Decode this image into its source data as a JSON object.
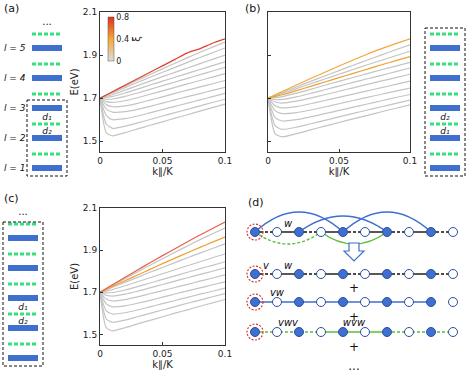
{
  "chart_data": [
    {
      "type": "line",
      "x_label": "k∥/K",
      "y_label": "E(eV)",
      "x": [
        0,
        0.005,
        0.01,
        0.02,
        0.03,
        0.04,
        0.05,
        0.06,
        0.07,
        0.08,
        0.09,
        0.1
      ],
      "xlim": [
        0,
        0.1
      ],
      "ylim": [
        1.45,
        2.1
      ],
      "xticks": [
        0,
        0.05,
        0.1
      ],
      "yticks": [
        1.5,
        1.7,
        1.9,
        2.1
      ],
      "colorbar": {
        "title": "ξ",
        "range": [
          0,
          0.8
        ],
        "ticks": [
          0,
          0.4,
          0.8
        ]
      },
      "series": [
        {
          "color": "#c4c4c4",
          "values": [
            1.7,
            1.714,
            1.728,
            1.756,
            1.783,
            1.81,
            1.836,
            1.862,
            1.888,
            1.913,
            1.937,
            1.96
          ]
        },
        {
          "color": "#c4c4c4",
          "values": [
            1.7,
            1.712,
            1.724,
            1.749,
            1.773,
            1.797,
            1.82,
            1.843,
            1.866,
            1.889,
            1.911,
            1.933
          ]
        },
        {
          "color": "#c4c4c4",
          "values": [
            1.7,
            1.708,
            1.717,
            1.737,
            1.758,
            1.779,
            1.8,
            1.82,
            1.84,
            1.86,
            1.88,
            1.9
          ]
        },
        {
          "color": "#c4c4c4",
          "values": [
            1.7,
            1.703,
            1.708,
            1.724,
            1.742,
            1.761,
            1.779,
            1.797,
            1.815,
            1.833,
            1.851,
            1.869
          ]
        },
        {
          "color": "#c4c4c4",
          "values": [
            1.7,
            1.695,
            1.696,
            1.708,
            1.724,
            1.741,
            1.758,
            1.775,
            1.792,
            1.809,
            1.826,
            1.843
          ]
        },
        {
          "color": "#c4c4c4",
          "values": [
            1.7,
            1.684,
            1.68,
            1.688,
            1.702,
            1.718,
            1.734,
            1.75,
            1.766,
            1.782,
            1.798,
            1.814
          ]
        },
        {
          "color": "#c4c4c4",
          "values": [
            1.7,
            1.67,
            1.66,
            1.664,
            1.676,
            1.691,
            1.706,
            1.722,
            1.737,
            1.752,
            1.767,
            1.782
          ]
        },
        {
          "color": "#c4c4c4",
          "values": [
            1.7,
            1.65,
            1.635,
            1.637,
            1.648,
            1.662,
            1.677,
            1.692,
            1.707,
            1.721,
            1.736,
            1.75
          ]
        },
        {
          "color": "#c4c4c4",
          "values": [
            1.7,
            1.62,
            1.6,
            1.605,
            1.617,
            1.632,
            1.647,
            1.662,
            1.677,
            1.692,
            1.707,
            1.722
          ]
        },
        {
          "color": "#c4c4c4",
          "values": [
            1.7,
            1.58,
            1.56,
            1.57,
            1.585,
            1.601,
            1.617,
            1.633,
            1.648,
            1.664,
            1.68,
            1.695
          ]
        },
        {
          "color": "#c4c4c4",
          "values": [
            1.7,
            1.54,
            1.525,
            1.54,
            1.557,
            1.574,
            1.59,
            1.607,
            1.623,
            1.64,
            1.656,
            1.672
          ]
        },
        {
          "color": "#e0402a",
          "values": [
            1.7,
            1.715,
            1.73,
            1.76,
            1.79,
            1.82,
            1.85,
            1.88,
            1.91,
            1.93,
            1.955,
            1.975
          ]
        }
      ]
    },
    {
      "type": "line",
      "x_label": "k∥/K",
      "tick_labels": "x",
      "x": [
        0,
        0.005,
        0.01,
        0.02,
        0.03,
        0.04,
        0.05,
        0.06,
        0.07,
        0.08,
        0.09,
        0.1
      ],
      "xlim": [
        0,
        0.1
      ],
      "ylim": [
        1.45,
        2.1
      ],
      "xticks": [
        0,
        0.05,
        0.1
      ],
      "yticks": [
        1.5,
        1.7,
        1.9,
        2.1
      ],
      "series": [
        {
          "color": "#c4c4c4",
          "values": [
            1.7,
            1.713,
            1.726,
            1.752,
            1.778,
            1.803,
            1.828,
            1.853,
            1.877,
            1.901,
            1.925,
            1.948
          ]
        },
        {
          "color": "#c4c4c4",
          "values": [
            1.7,
            1.711,
            1.722,
            1.744,
            1.767,
            1.789,
            1.811,
            1.833,
            1.855,
            1.876,
            1.897,
            1.918
          ]
        },
        {
          "color": "#c4c4c4",
          "values": [
            1.7,
            1.702,
            1.707,
            1.723,
            1.741,
            1.76,
            1.778,
            1.796,
            1.814,
            1.832,
            1.849,
            1.866
          ]
        },
        {
          "color": "#c4c4c4",
          "values": [
            1.7,
            1.693,
            1.694,
            1.706,
            1.722,
            1.739,
            1.756,
            1.773,
            1.79,
            1.806,
            1.823,
            1.84
          ]
        },
        {
          "color": "#c4c4c4",
          "values": [
            1.7,
            1.682,
            1.677,
            1.686,
            1.7,
            1.716,
            1.732,
            1.748,
            1.764,
            1.78,
            1.795,
            1.811
          ]
        },
        {
          "color": "#c4c4c4",
          "values": [
            1.7,
            1.665,
            1.655,
            1.661,
            1.674,
            1.689,
            1.704,
            1.719,
            1.734,
            1.749,
            1.764,
            1.779
          ]
        },
        {
          "color": "#c4c4c4",
          "values": [
            1.7,
            1.642,
            1.628,
            1.633,
            1.645,
            1.659,
            1.674,
            1.689,
            1.704,
            1.718,
            1.733,
            1.747
          ]
        },
        {
          "color": "#c4c4c4",
          "values": [
            1.7,
            1.61,
            1.594,
            1.6,
            1.613,
            1.628,
            1.643,
            1.658,
            1.673,
            1.688,
            1.703,
            1.717
          ]
        },
        {
          "color": "#c4c4c4",
          "values": [
            1.7,
            1.572,
            1.555,
            1.565,
            1.581,
            1.597,
            1.613,
            1.629,
            1.645,
            1.66,
            1.676,
            1.691
          ]
        },
        {
          "color": "#c4c4c4",
          "values": [
            1.7,
            1.535,
            1.52,
            1.535,
            1.553,
            1.57,
            1.587,
            1.604,
            1.62,
            1.637,
            1.653,
            1.669
          ]
        },
        {
          "color": "#f0a030",
          "values": [
            1.7,
            1.708,
            1.716,
            1.735,
            1.755,
            1.775,
            1.795,
            1.815,
            1.835,
            1.855,
            1.874,
            1.893
          ]
        },
        {
          "color": "#f4a63a",
          "values": [
            1.7,
            1.716,
            1.731,
            1.761,
            1.791,
            1.82,
            1.849,
            1.877,
            1.905,
            1.93,
            1.953,
            1.975
          ]
        }
      ]
    },
    {
      "type": "line",
      "x_label": "k∥/K",
      "y_label": "E(eV)",
      "x": [
        0,
        0.005,
        0.01,
        0.02,
        0.03,
        0.04,
        0.05,
        0.06,
        0.07,
        0.08,
        0.09,
        0.1
      ],
      "xlim": [
        0,
        0.1
      ],
      "ylim": [
        1.45,
        2.1
      ],
      "xticks": [
        0,
        0.05,
        0.1
      ],
      "yticks": [
        1.5,
        1.7,
        1.9,
        2.1
      ],
      "series": [
        {
          "color": "#c4c4c4",
          "values": [
            1.7,
            1.716,
            1.733,
            1.765,
            1.797,
            1.828,
            1.859,
            1.89,
            1.92,
            1.95,
            1.978,
            2.005
          ]
        },
        {
          "color": "#c4c4c4",
          "values": [
            1.7,
            1.712,
            1.724,
            1.747,
            1.771,
            1.795,
            1.818,
            1.841,
            1.864,
            1.886,
            1.908,
            1.93
          ]
        },
        {
          "color": "#c4c4c4",
          "values": [
            1.7,
            1.706,
            1.713,
            1.731,
            1.75,
            1.769,
            1.788,
            1.807,
            1.826,
            1.845,
            1.864,
            1.882
          ]
        },
        {
          "color": "#c4c4c4",
          "values": [
            1.7,
            1.697,
            1.699,
            1.711,
            1.727,
            1.744,
            1.761,
            1.778,
            1.795,
            1.812,
            1.828,
            1.845
          ]
        },
        {
          "color": "#c4c4c4",
          "values": [
            1.7,
            1.686,
            1.682,
            1.691,
            1.705,
            1.721,
            1.737,
            1.753,
            1.769,
            1.785,
            1.8,
            1.816
          ]
        },
        {
          "color": "#c4c4c4",
          "values": [
            1.7,
            1.668,
            1.659,
            1.665,
            1.678,
            1.693,
            1.708,
            1.723,
            1.738,
            1.753,
            1.768,
            1.783
          ]
        },
        {
          "color": "#c4c4c4",
          "values": [
            1.7,
            1.645,
            1.631,
            1.636,
            1.648,
            1.662,
            1.677,
            1.692,
            1.707,
            1.721,
            1.736,
            1.75
          ]
        },
        {
          "color": "#c4c4c4",
          "values": [
            1.7,
            1.612,
            1.597,
            1.603,
            1.616,
            1.631,
            1.646,
            1.661,
            1.676,
            1.691,
            1.705,
            1.72
          ]
        },
        {
          "color": "#c4c4c4",
          "values": [
            1.7,
            1.574,
            1.558,
            1.568,
            1.584,
            1.6,
            1.616,
            1.632,
            1.648,
            1.663,
            1.679,
            1.694
          ]
        },
        {
          "color": "#c4c4c4",
          "values": [
            1.7,
            1.532,
            1.517,
            1.532,
            1.55,
            1.567,
            1.584,
            1.601,
            1.617,
            1.634,
            1.65,
            1.666
          ]
        },
        {
          "color": "#f0a030",
          "values": [
            1.7,
            1.714,
            1.728,
            1.755,
            1.782,
            1.809,
            1.836,
            1.862,
            1.888,
            1.913,
            1.938,
            1.962
          ]
        },
        {
          "color": "#e8604a",
          "values": [
            1.7,
            1.718,
            1.736,
            1.771,
            1.806,
            1.84,
            1.874,
            1.907,
            1.94,
            1.972,
            2.003,
            2.033
          ]
        }
      ]
    }
  ],
  "panel_labels": [
    "(a)",
    "(b)",
    "(c)",
    "(d)"
  ],
  "stacks": [
    {
      "levels": [
        "l = 1",
        "l = 2",
        "l = 3",
        "l = 4",
        "l = 5"
      ],
      "spacings": [
        "d₁",
        "d₂"
      ],
      "ellipsis": "..."
    },
    {
      "spacings": [
        "d₂",
        "d₁"
      ]
    },
    {
      "spacings": [
        "d₁",
        "d₂"
      ],
      "ellipsis": "..."
    }
  ],
  "diagram": {
    "top": [
      "w"
    ],
    "rows": [
      [
        "v",
        "w"
      ],
      [
        "vw"
      ],
      [
        "vwv",
        "wvw"
      ]
    ],
    "plus": [
      "+",
      "+",
      "+"
    ],
    "more": "..."
  }
}
